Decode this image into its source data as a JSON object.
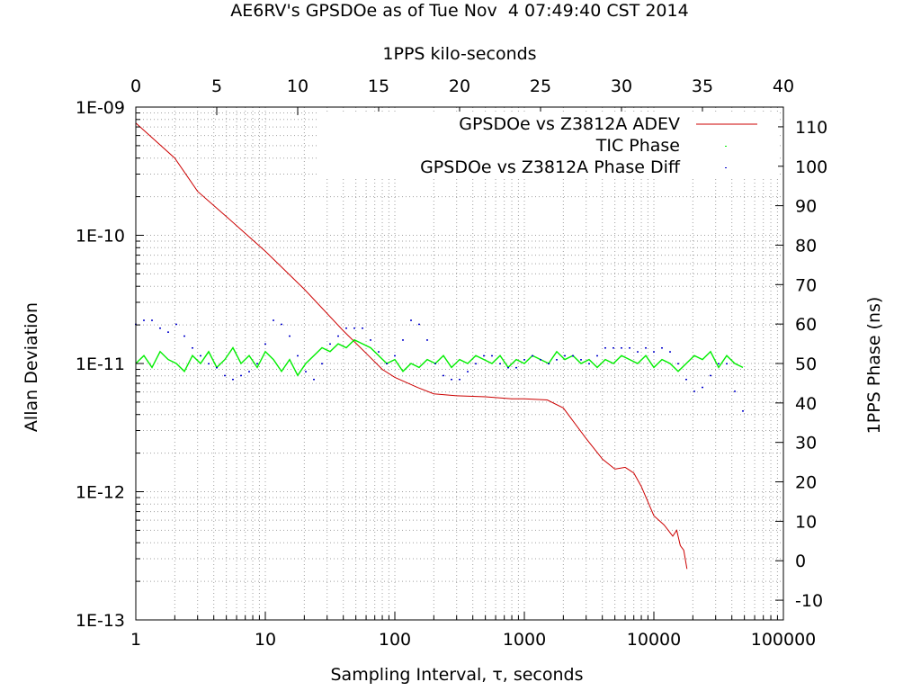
{
  "chart_data": {
    "type": "line",
    "title": "AE6RV's GPSDOe as of Tue Nov  4 07:49:40 CST 2014",
    "xlabel": "Sampling Interval, τ, seconds",
    "x2label": "1PPS kilo-seconds",
    "ylabel": "Allan Deviation",
    "y2label": "1PPS Phase (ns)",
    "x_axis": {
      "scale": "log",
      "range": [
        1,
        100000
      ],
      "tick_labels": [
        "1",
        "10",
        "100",
        "1000",
        "10000",
        "100000"
      ]
    },
    "x2_axis": {
      "scale": "linear",
      "range": [
        0,
        40
      ],
      "tick_labels": [
        "0",
        "5",
        "10",
        "15",
        "20",
        "25",
        "30",
        "35",
        "40"
      ]
    },
    "y_axis": {
      "scale": "log",
      "range": [
        1e-13,
        1e-09
      ],
      "tick_labels": [
        "1E-13",
        "1E-12",
        "1E-11",
        "1E-10",
        "1E-09"
      ]
    },
    "y2_axis": {
      "scale": "linear",
      "range": [
        -15,
        115
      ],
      "tick_labels": [
        "-10",
        "0",
        "10",
        "20",
        "30",
        "40",
        "50",
        "60",
        "70",
        "80",
        "90",
        "100",
        "110"
      ]
    },
    "grid": true,
    "legend_position": "top-right",
    "series": [
      {
        "name": "GPSDOe vs Z3812A ADEV",
        "axes": "x1y1",
        "color": "#cc0000",
        "style": "line",
        "x": [
          1,
          2,
          3,
          5,
          10,
          20,
          40,
          60,
          80,
          100,
          150,
          200,
          300,
          500,
          800,
          1000,
          1500,
          2000,
          3000,
          4000,
          5000,
          6000,
          7000,
          8000,
          10000,
          12000,
          14000,
          15000,
          16000,
          17000,
          18000
        ],
        "y": [
          7.5e-10,
          4e-10,
          2.2e-10,
          1.4e-10,
          7.5e-11,
          3.8e-11,
          1.8e-11,
          1.2e-11,
          9e-12,
          7.8e-12,
          6.5e-12,
          5.8e-12,
          5.6e-12,
          5.5e-12,
          5.3e-12,
          5.3e-12,
          5.2e-12,
          4.5e-12,
          2.6e-12,
          1.8e-12,
          1.5e-12,
          1.55e-12,
          1.4e-12,
          1.1e-12,
          6.5e-13,
          5.5e-13,
          4.5e-13,
          5e-13,
          3.8e-13,
          3.5e-13,
          2.5e-13
        ]
      },
      {
        "name": "TIC Phase",
        "axes": "x2y2",
        "color": "#00ee00",
        "style": "line",
        "x": [
          0,
          0.5,
          1,
          1.5,
          2,
          2.5,
          3,
          3.5,
          4,
          4.5,
          5,
          5.5,
          6,
          6.5,
          7,
          7.5,
          8,
          8.5,
          9,
          9.5,
          10,
          10.5,
          11,
          11.5,
          12,
          12.5,
          13,
          13.5,
          14,
          14.5,
          15,
          15.5,
          16,
          16.5,
          17,
          17.5,
          18,
          18.5,
          19,
          19.5,
          20,
          20.5,
          21,
          21.5,
          22,
          22.5,
          23,
          23.5,
          24,
          24.5,
          25,
          25.5,
          26,
          26.5,
          27,
          27.5,
          28,
          28.5,
          29,
          29.5,
          30,
          30.5,
          31,
          31.5,
          32,
          32.5,
          33,
          33.5,
          34,
          34.5,
          35,
          35.5,
          36,
          36.5,
          37,
          37.5
        ],
        "y": [
          50,
          52,
          49,
          53,
          51,
          50,
          48,
          52,
          50,
          53,
          49,
          51,
          54,
          50,
          52,
          49,
          53,
          51,
          48,
          51,
          47,
          50,
          52,
          54,
          53,
          55,
          54,
          56,
          55,
          54,
          52,
          50,
          51,
          48,
          50,
          49,
          51,
          50,
          52,
          49,
          51,
          50,
          52,
          51,
          50,
          52,
          49,
          51,
          50,
          52,
          51,
          50,
          53,
          51,
          52,
          50,
          51,
          49,
          51,
          50,
          52,
          51,
          50,
          52,
          49,
          51,
          50,
          48,
          50,
          52,
          51,
          53,
          49,
          52,
          50,
          49
        ]
      },
      {
        "name": "GPSDOe vs Z3812A Phase Diff",
        "axes": "x2y2",
        "color": "#0000cc",
        "style": "dots",
        "x": [
          0,
          0.5,
          1,
          1.5,
          2,
          2.5,
          3,
          3.5,
          4,
          4.5,
          5,
          5.5,
          6,
          6.5,
          7,
          7.5,
          8,
          8.5,
          9,
          9.5,
          10,
          10.5,
          11,
          11.5,
          12,
          12.5,
          13,
          13.5,
          14,
          14.5,
          15,
          15.5,
          16,
          16.5,
          17,
          17.5,
          18,
          18.5,
          19,
          19.5,
          20,
          20.5,
          21,
          21.5,
          22,
          22.5,
          23,
          23.5,
          24,
          24.5,
          25,
          25.5,
          26,
          26.5,
          27,
          27.5,
          28,
          28.5,
          29,
          29.5,
          30,
          30.5,
          31,
          31.5,
          32,
          32.5,
          33,
          33.5,
          34,
          34.5,
          35,
          35.5,
          36,
          36.5,
          37,
          37.5
        ],
        "y": [
          60,
          61,
          61,
          59,
          58,
          60,
          57,
          54,
          52,
          50,
          49,
          47,
          46,
          47,
          48,
          50,
          55,
          61,
          60,
          57,
          52,
          48,
          46,
          50,
          55,
          57,
          59,
          59,
          59,
          56,
          53,
          50,
          52,
          56,
          61,
          60,
          56,
          50,
          47,
          46,
          46,
          48,
          50,
          52,
          52,
          50,
          49,
          49,
          51,
          52,
          51,
          50,
          51,
          52,
          52,
          51,
          50,
          52,
          54,
          54,
          54,
          54,
          53,
          54,
          53,
          54,
          53,
          50,
          46,
          43,
          44,
          47,
          50,
          50,
          43,
          38
        ]
      }
    ]
  }
}
